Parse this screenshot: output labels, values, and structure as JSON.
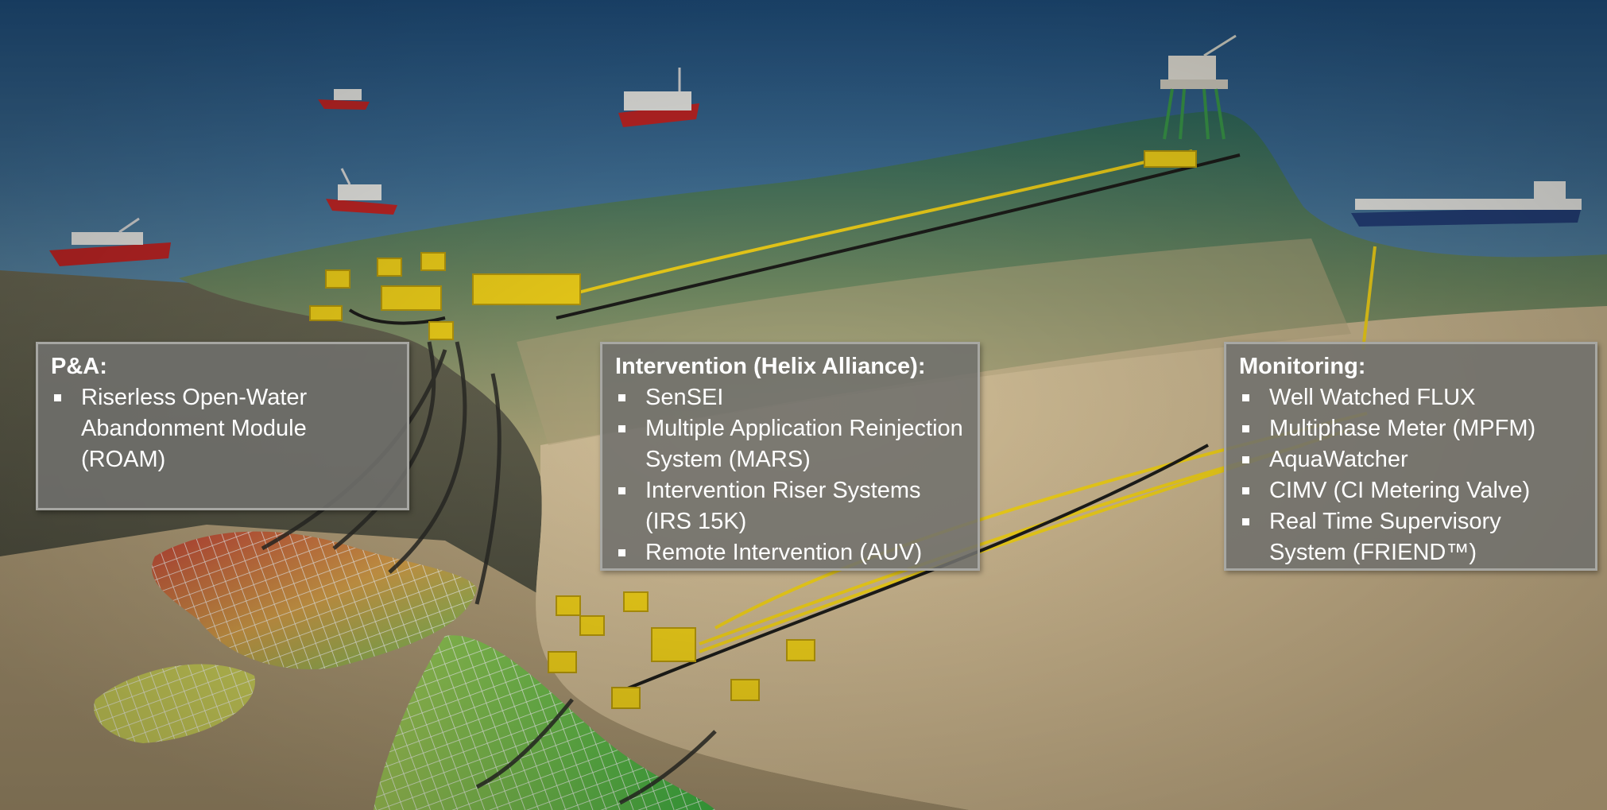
{
  "scene_elements": {
    "vessels": [
      "offshore-construction-vessel",
      "supply-vessel",
      "intervention-vessel",
      "trawler-vessel",
      "fpso-tanker"
    ],
    "platform": "offshore-platform",
    "subsea_equipment_color": "#f2d21b",
    "sea_color": "#3d6690",
    "seabed_color": "#c9b48c"
  },
  "panels": {
    "pa": {
      "title": "P&A:",
      "items": [
        "Riserless Open-Water Abandonment Module (ROAM)"
      ]
    },
    "intervention": {
      "title": "Intervention (Helix Alliance):",
      "items": [
        "SenSEI",
        "Multiple Application Reinjection System (MARS)",
        "Intervention Riser Systems (IRS 15K)",
        "Remote Intervention (AUV)"
      ]
    },
    "monitoring": {
      "title": "Monitoring:",
      "items": [
        "Well Watched FLUX",
        "Multiphase Meter (MPFM)",
        "AquaWatcher",
        "CIMV (CI Metering Valve)",
        "Real Time Supervisory System (FRIEND™)"
      ]
    }
  }
}
